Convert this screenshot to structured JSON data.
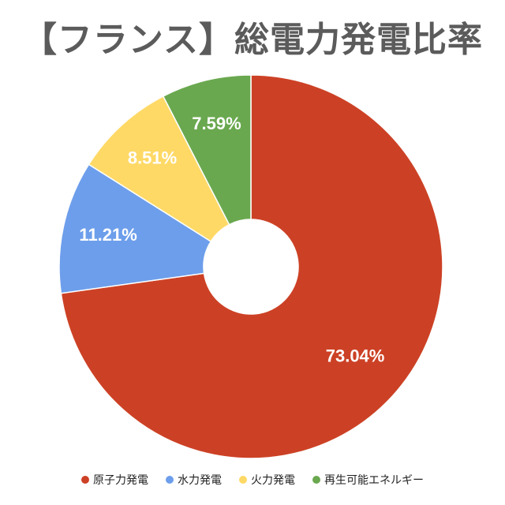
{
  "title": "【フランス】総電力発電比率",
  "chart_data": {
    "type": "pie",
    "variant": "donut",
    "title": "【フランス】総電力発電比率",
    "start": "top",
    "direction": "clockwise",
    "legend_position": "bottom",
    "categories": [
      "原子力発電",
      "水力発電",
      "火力発電",
      "再生可能エネルギー"
    ],
    "values": [
      73.04,
      11.21,
      8.51,
      7.59
    ],
    "data_labels": [
      "73.04%",
      "11.21%",
      "8.51%",
      "7.59%"
    ],
    "colors": [
      "#cc4125",
      "#6d9eeb",
      "#ffd966",
      "#6aa84f"
    ]
  }
}
